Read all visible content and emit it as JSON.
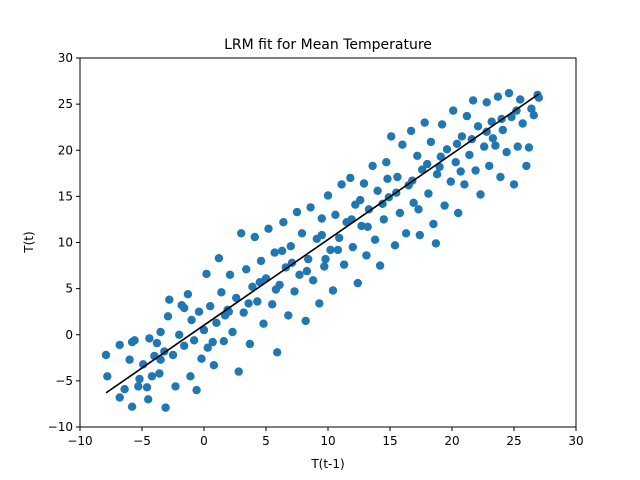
{
  "chart_data": {
    "type": "scatter",
    "title": "LRM fit for Mean Temperature",
    "xlabel": "T(t-1)",
    "ylabel": "T(t)",
    "xlim": [
      -10,
      30
    ],
    "ylim": [
      -10,
      30
    ],
    "xticks": [
      -10,
      -5,
      0,
      5,
      10,
      15,
      20,
      25,
      30
    ],
    "yticks": [
      -10,
      -5,
      0,
      5,
      10,
      15,
      20,
      25,
      30
    ],
    "grid": false,
    "colors": {
      "points": "#1f77b4",
      "fit_line": "#000000"
    },
    "scatter_points": [
      [
        -7.9,
        -2.2
      ],
      [
        -7.8,
        -4.5
      ],
      [
        -6.8,
        -1.1
      ],
      [
        -6.8,
        -6.8
      ],
      [
        -6.4,
        -5.9
      ],
      [
        -6.0,
        -2.7
      ],
      [
        -5.8,
        -0.8
      ],
      [
        -5.8,
        -7.8
      ],
      [
        -5.6,
        -0.6
      ],
      [
        -5.3,
        -5.6
      ],
      [
        -4.9,
        -3.2
      ],
      [
        -4.6,
        -5.7
      ],
      [
        -4.5,
        -7.0
      ],
      [
        -4.4,
        -0.4
      ],
      [
        -4.2,
        -4.5
      ],
      [
        -4.0,
        -2.3
      ],
      [
        -3.8,
        -0.9
      ],
      [
        -3.6,
        -4.2
      ],
      [
        -3.5,
        0.3
      ],
      [
        -3.2,
        -1.8
      ],
      [
        -3.1,
        -7.9
      ],
      [
        -2.9,
        2.0
      ],
      [
        -2.8,
        3.8
      ],
      [
        -2.5,
        -2.2
      ],
      [
        -2.3,
        -5.6
      ],
      [
        -2.0,
        0.0
      ],
      [
        -1.8,
        3.2
      ],
      [
        -1.6,
        -1.2
      ],
      [
        -1.3,
        4.4
      ],
      [
        -1.1,
        -4.5
      ],
      [
        -1.0,
        1.6
      ],
      [
        -0.8,
        -0.6
      ],
      [
        -0.6,
        -6.0
      ],
      [
        -0.4,
        2.5
      ],
      [
        -0.2,
        -2.6
      ],
      [
        0.0,
        0.5
      ],
      [
        0.2,
        6.6
      ],
      [
        0.3,
        -1.4
      ],
      [
        0.5,
        3.1
      ],
      [
        0.8,
        -3.3
      ],
      [
        1.0,
        1.3
      ],
      [
        1.2,
        8.3
      ],
      [
        1.4,
        4.6
      ],
      [
        1.6,
        -0.7
      ],
      [
        1.9,
        2.7
      ],
      [
        2.1,
        6.5
      ],
      [
        2.3,
        0.3
      ],
      [
        2.6,
        4.0
      ],
      [
        2.8,
        -4.0
      ],
      [
        3.0,
        11.0
      ],
      [
        3.2,
        2.4
      ],
      [
        3.4,
        7.1
      ],
      [
        3.7,
        -1.0
      ],
      [
        3.9,
        5.2
      ],
      [
        4.1,
        10.6
      ],
      [
        4.3,
        3.6
      ],
      [
        4.6,
        8.0
      ],
      [
        4.8,
        1.2
      ],
      [
        5.0,
        6.1
      ],
      [
        5.2,
        11.5
      ],
      [
        5.5,
        3.3
      ],
      [
        5.7,
        8.9
      ],
      [
        5.9,
        -1.9
      ],
      [
        6.1,
        5.4
      ],
      [
        6.4,
        12.2
      ],
      [
        6.6,
        7.3
      ],
      [
        6.8,
        2.1
      ],
      [
        7.0,
        9.6
      ],
      [
        7.3,
        4.7
      ],
      [
        7.5,
        13.3
      ],
      [
        7.7,
        6.5
      ],
      [
        7.9,
        11.0
      ],
      [
        8.2,
        1.5
      ],
      [
        8.4,
        8.2
      ],
      [
        8.6,
        13.8
      ],
      [
        8.8,
        5.9
      ],
      [
        9.1,
        10.4
      ],
      [
        9.3,
        3.4
      ],
      [
        9.5,
        12.6
      ],
      [
        9.7,
        7.4
      ],
      [
        10.0,
        15.1
      ],
      [
        10.2,
        9.2
      ],
      [
        10.4,
        4.8
      ],
      [
        10.6,
        13.0
      ],
      [
        10.9,
        10.5
      ],
      [
        11.1,
        16.3
      ],
      [
        11.3,
        7.6
      ],
      [
        11.5,
        12.2
      ],
      [
        11.8,
        17.0
      ],
      [
        12.0,
        9.5
      ],
      [
        12.2,
        14.1
      ],
      [
        12.4,
        5.6
      ],
      [
        12.7,
        11.8
      ],
      [
        12.9,
        16.4
      ],
      [
        13.1,
        8.6
      ],
      [
        13.3,
        13.6
      ],
      [
        13.6,
        18.3
      ],
      [
        13.8,
        10.3
      ],
      [
        14.0,
        15.6
      ],
      [
        14.2,
        7.5
      ],
      [
        14.5,
        12.5
      ],
      [
        14.7,
        18.7
      ],
      [
        14.9,
        14.9
      ],
      [
        15.1,
        21.5
      ],
      [
        15.4,
        9.7
      ],
      [
        15.6,
        17.1
      ],
      [
        15.8,
        13.2
      ],
      [
        16.0,
        20.6
      ],
      [
        16.3,
        11.0
      ],
      [
        16.5,
        16.2
      ],
      [
        16.7,
        22.1
      ],
      [
        16.9,
        14.3
      ],
      [
        17.2,
        19.4
      ],
      [
        17.4,
        10.8
      ],
      [
        17.6,
        17.9
      ],
      [
        17.8,
        23.0
      ],
      [
        18.1,
        15.3
      ],
      [
        18.3,
        20.9
      ],
      [
        18.5,
        12.0
      ],
      [
        18.7,
        9.9
      ],
      [
        19.0,
        18.2
      ],
      [
        19.2,
        22.8
      ],
      [
        19.4,
        14.0
      ],
      [
        19.6,
        20.1
      ],
      [
        19.9,
        16.6
      ],
      [
        20.1,
        24.3
      ],
      [
        20.3,
        18.7
      ],
      [
        20.5,
        13.2
      ],
      [
        20.8,
        21.5
      ],
      [
        21.0,
        16.3
      ],
      [
        21.2,
        23.7
      ],
      [
        21.4,
        19.5
      ],
      [
        21.7,
        25.4
      ],
      [
        21.9,
        17.8
      ],
      [
        22.1,
        22.6
      ],
      [
        22.3,
        15.2
      ],
      [
        22.6,
        20.4
      ],
      [
        22.8,
        25.2
      ],
      [
        23.0,
        18.3
      ],
      [
        23.2,
        23.1
      ],
      [
        23.5,
        20.5
      ],
      [
        23.7,
        25.8
      ],
      [
        23.9,
        17.1
      ],
      [
        24.1,
        22.2
      ],
      [
        24.4,
        19.8
      ],
      [
        24.6,
        26.2
      ],
      [
        24.8,
        23.6
      ],
      [
        25.0,
        16.3
      ],
      [
        25.3,
        20.4
      ],
      [
        25.5,
        25.5
      ],
      [
        25.7,
        22.9
      ],
      [
        26.0,
        18.3
      ],
      [
        26.2,
        20.3
      ],
      [
        26.4,
        24.5
      ],
      [
        26.6,
        23.8
      ],
      [
        26.9,
        26.0
      ],
      [
        27.0,
        25.7
      ],
      [
        -5.2,
        -4.8
      ],
      [
        -3.5,
        -2.7
      ],
      [
        -1.6,
        2.9
      ],
      [
        0.7,
        -0.8
      ],
      [
        2.0,
        2.5
      ],
      [
        3.6,
        3.4
      ],
      [
        4.5,
        5.7
      ],
      [
        5.8,
        4.9
      ],
      [
        7.1,
        7.8
      ],
      [
        8.3,
        6.9
      ],
      [
        9.5,
        10.8
      ],
      [
        10.8,
        9.2
      ],
      [
        11.9,
        12.5
      ],
      [
        13.2,
        11.7
      ],
      [
        14.4,
        14.2
      ],
      [
        15.5,
        15.4
      ],
      [
        16.8,
        16.7
      ],
      [
        18.0,
        18.5
      ],
      [
        19.1,
        19.3
      ],
      [
        20.4,
        20.7
      ],
      [
        21.6,
        21.2
      ],
      [
        22.8,
        22.0
      ],
      [
        24.0,
        23.4
      ],
      [
        25.2,
        24.3
      ],
      [
        9.8,
        8.2
      ],
      [
        12.6,
        14.6
      ],
      [
        17.3,
        13.6
      ],
      [
        18.8,
        17.4
      ],
      [
        1.7,
        2.1
      ],
      [
        6.3,
        9.1
      ],
      [
        14.8,
        16.9
      ],
      [
        20.7,
        17.7
      ],
      [
        23.3,
        21.3
      ]
    ],
    "fit_line": {
      "x": [
        -7.9,
        27.0
      ],
      "y": [
        -6.3,
        26.1
      ]
    }
  }
}
